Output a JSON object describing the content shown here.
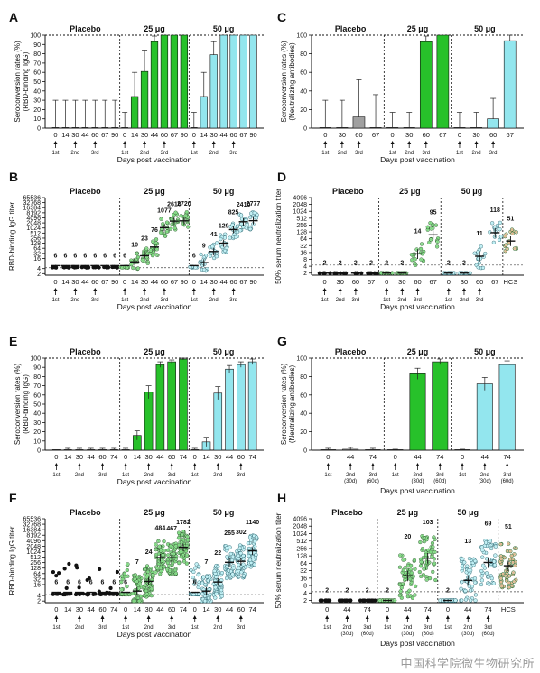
{
  "colors": {
    "placebo": "#a0a0a0",
    "dose25": "#27c12a",
    "dose50": "#93e6ee",
    "hcs": "#c98a48",
    "edge": "#111111"
  },
  "watermark": "中国科学院微生物研究所",
  "chart_data": [
    {
      "id": "A",
      "type": "bar",
      "title": "",
      "ylabel": "Seroconversion rates (%)\n(RBD-binding IgG)",
      "xlabel": "Days post vaccination",
      "ylim": [
        0,
        100
      ],
      "yticks": [
        0,
        10,
        20,
        30,
        40,
        50,
        60,
        70,
        80,
        90,
        100
      ],
      "groups": [
        {
          "name": "Placebo",
          "x": [
            "0",
            "14",
            "30",
            "44",
            "60",
            "67",
            "90"
          ],
          "values": [
            0,
            0,
            0,
            0,
            0,
            0,
            0
          ],
          "err_hi": [
            30,
            30,
            30,
            30,
            30,
            30,
            30
          ]
        },
        {
          "name": "25 μg",
          "x": [
            "0",
            "14",
            "30",
            "44",
            "60",
            "67",
            "90"
          ],
          "values": [
            0,
            34,
            61,
            93,
            100,
            100,
            100
          ],
          "err_hi": [
            17,
            60,
            84,
            99,
            100,
            100,
            100
          ]
        },
        {
          "name": "50 μg",
          "x": [
            "0",
            "14",
            "30",
            "44",
            "60",
            "67",
            "90"
          ],
          "values": [
            0,
            34,
            79,
            100,
            100,
            100,
            100
          ],
          "err_hi": [
            17,
            60,
            93,
            100,
            100,
            100,
            100
          ]
        }
      ],
      "dose_marks": [
        {
          "x": "0",
          "label": "1st"
        },
        {
          "x": "30",
          "label": "2nd"
        },
        {
          "x": "60",
          "label": "3rd"
        }
      ]
    },
    {
      "id": "B",
      "type": "scatter",
      "title": "",
      "ylabel": "RBD-binding IgG titer",
      "xlabel": "Days post vaccination",
      "yticks": [
        "2",
        "4",
        "16",
        "32",
        "64",
        "128",
        "256",
        "512",
        "1024",
        "2048",
        "4096",
        "8192",
        "16384",
        "32768",
        "65536"
      ],
      "groups": [
        {
          "name": "Placebo",
          "x": [
            "0",
            "14",
            "30",
            "44",
            "60",
            "67",
            "90"
          ],
          "gmt": [
            6,
            6,
            6,
            6,
            6,
            6,
            6
          ],
          "gmt_labels": [
            "6",
            "6",
            "6",
            "6",
            "6",
            "6",
            "6"
          ]
        },
        {
          "name": "25 μg",
          "x": [
            "0",
            "14",
            "30",
            "44",
            "60",
            "67",
            "90"
          ],
          "gmt": [
            6,
            10,
            23,
            76,
            1077,
            2616,
            2720
          ],
          "gmt_labels": [
            "6",
            "10",
            "23",
            "76",
            "1077",
            "2616",
            "2720"
          ]
        },
        {
          "name": "50 μg",
          "x": [
            "0",
            "14",
            "30",
            "44",
            "60",
            "67",
            "90"
          ],
          "gmt": [
            6,
            9,
            41,
            129,
            825,
            2410,
            2777
          ],
          "gmt_labels": [
            "6",
            "9",
            "41",
            "129",
            "825",
            "2410",
            "2777"
          ]
        }
      ],
      "dose_marks": [
        {
          "x": "0",
          "label": "1st"
        },
        {
          "x": "30",
          "label": "2nd"
        },
        {
          "x": "60",
          "label": "3rd"
        }
      ]
    },
    {
      "id": "C",
      "type": "bar",
      "title": "",
      "ylabel": "Seroconversion rates (%)\n(Neutralizing antibodies)",
      "xlabel": "Days post vaccination",
      "ylim": [
        0,
        100
      ],
      "yticks": [
        0,
        20,
        40,
        60,
        80,
        100
      ],
      "groups": [
        {
          "name": "Placebo",
          "x": [
            "0",
            "30",
            "60",
            "67"
          ],
          "values": [
            0,
            0,
            12,
            0
          ],
          "err_hi": [
            30,
            30,
            52,
            36
          ]
        },
        {
          "name": "25 μg",
          "x": [
            "0",
            "30",
            "60",
            "67"
          ],
          "values": [
            0,
            0,
            93,
            100
          ],
          "err_hi": [
            17,
            17,
            99,
            100
          ]
        },
        {
          "name": "50 μg",
          "x": [
            "0",
            "30",
            "60",
            "67"
          ],
          "values": [
            0,
            0,
            10,
            94
          ],
          "err_hi": [
            17,
            17,
            32,
            100
          ]
        }
      ],
      "dose_marks": [
        {
          "x": "0",
          "label": "1st"
        },
        {
          "x": "30",
          "label": "2nd"
        },
        {
          "x": "60",
          "label": "3rd"
        }
      ]
    },
    {
      "id": "D",
      "type": "scatter",
      "title": "",
      "ylabel": "50% serum neutralization titer",
      "xlabel": "Days post vaccination",
      "yticks": [
        "2",
        "4",
        "8",
        "16",
        "32",
        "64",
        "128",
        "256",
        "512",
        "1024",
        "2048",
        "4096"
      ],
      "groups": [
        {
          "name": "Placebo",
          "x": [
            "0",
            "30",
            "60",
            "67"
          ],
          "gmt": [
            2,
            2,
            2,
            2
          ],
          "gmt_labels": [
            "2",
            "2",
            "2",
            "2"
          ]
        },
        {
          "name": "25 μg",
          "x": [
            "0",
            "30",
            "60",
            "67"
          ],
          "gmt": [
            2,
            2,
            14,
            95
          ],
          "gmt_labels": [
            "2",
            "2",
            "14",
            "95"
          ]
        },
        {
          "name": "50 μg",
          "x": [
            "0",
            "30",
            "60",
            "67"
          ],
          "gmt": [
            2,
            2,
            11,
            118
          ],
          "gmt_labels": [
            "2",
            "2",
            "11",
            "118"
          ]
        },
        {
          "name": "",
          "x": [
            "HCS"
          ],
          "gmt": [
            51
          ],
          "gmt_labels": [
            "51"
          ]
        }
      ],
      "dose_marks": [
        {
          "x": "0",
          "label": "1st"
        },
        {
          "x": "30",
          "label": "2nd"
        },
        {
          "x": "60",
          "label": "3rd"
        }
      ]
    },
    {
      "id": "E",
      "type": "bar",
      "title": "",
      "ylabel": "Seroconversion rates (%)\n(RBD-binding IgG)",
      "xlabel": "Days post vaccination",
      "ylim": [
        0,
        100
      ],
      "yticks": [
        0,
        10,
        20,
        30,
        40,
        50,
        60,
        70,
        80,
        90,
        100
      ],
      "groups": [
        {
          "name": "Placebo",
          "x": [
            "0",
            "14",
            "30",
            "44",
            "60",
            "74"
          ],
          "values": [
            0,
            0,
            0,
            0,
            0,
            0
          ],
          "err": [
            0,
            2,
            2,
            2,
            2,
            2
          ]
        },
        {
          "name": "25 μg",
          "x": [
            "0",
            "14",
            "30",
            "44",
            "60",
            "74"
          ],
          "values": [
            0,
            16,
            63,
            93,
            96,
            99
          ],
          "err": [
            2,
            5,
            7,
            3,
            2,
            1
          ]
        },
        {
          "name": "50 μg",
          "x": [
            "0",
            "14",
            "30",
            "44",
            "60",
            "74"
          ],
          "values": [
            0,
            9,
            62,
            88,
            93,
            96
          ],
          "err": [
            2,
            5,
            7,
            4,
            3,
            3
          ]
        }
      ],
      "dose_marks": [
        {
          "x": "0",
          "label": "1st"
        },
        {
          "x": "30",
          "label": "2nd"
        },
        {
          "x": "60",
          "label": "3rd"
        }
      ]
    },
    {
      "id": "F",
      "type": "scatter",
      "title": "",
      "ylabel": "RBD-binding IgG titer",
      "xlabel": "Days post vaccination",
      "yticks": [
        "2",
        "4",
        "16",
        "32",
        "64",
        "128",
        "256",
        "512",
        "1024",
        "2048",
        "4096",
        "8192",
        "16384",
        "32768",
        "65536"
      ],
      "groups": [
        {
          "name": "Placebo",
          "x": [
            "0",
            "14",
            "30",
            "44",
            "60",
            "74"
          ],
          "gmt": [
            6,
            6,
            6,
            6,
            6,
            6
          ],
          "gmt_labels": [
            "6",
            "6",
            "6",
            "6",
            "6",
            "6"
          ]
        },
        {
          "name": "25 μg",
          "x": [
            "0",
            "14",
            "30",
            "44",
            "60",
            "74"
          ],
          "gmt": [
            6,
            7,
            24,
            484,
            467,
            1782
          ],
          "gmt_labels": [
            "6",
            "7",
            "24",
            "484",
            "467",
            "1782"
          ]
        },
        {
          "name": "50 μg",
          "x": [
            "0",
            "14",
            "30",
            "44",
            "60",
            "74"
          ],
          "gmt": [
            6,
            7,
            22,
            265,
            302,
            1140
          ],
          "gmt_labels": [
            "6",
            "7",
            "22",
            "265",
            "302",
            "1140"
          ]
        }
      ],
      "dose_marks": [
        {
          "x": "0",
          "label": "1st"
        },
        {
          "x": "30",
          "label": "2nd"
        },
        {
          "x": "60",
          "label": "3rd"
        }
      ]
    },
    {
      "id": "G",
      "type": "bar",
      "title": "",
      "ylabel": "Seroconversion rates (%)\n(Neutralizing antibodies)",
      "xlabel": "Days post vaccination",
      "ylim": [
        0,
        100
      ],
      "yticks": [
        0,
        20,
        40,
        60,
        80,
        100
      ],
      "groups": [
        {
          "name": "Placebo",
          "x": [
            "0",
            "44",
            "74"
          ],
          "values": [
            0,
            1,
            0
          ],
          "err": [
            2,
            2,
            2
          ]
        },
        {
          "name": "25 μg",
          "x": [
            "0",
            "44",
            "74"
          ],
          "values": [
            0,
            83,
            96
          ],
          "err": [
            1,
            6,
            3
          ]
        },
        {
          "name": "50 μg",
          "x": [
            "0",
            "44",
            "74"
          ],
          "values": [
            0,
            72,
            93
          ],
          "err": [
            1,
            7,
            4
          ]
        }
      ],
      "dose_marks": [
        {
          "x": "0",
          "label": "1st"
        },
        {
          "x": "44",
          "label": "2nd\n(30d)"
        },
        {
          "x": "74",
          "label": "3rd\n(60d)"
        }
      ]
    },
    {
      "id": "H",
      "type": "scatter",
      "title": "",
      "ylabel": "50% serum neutralization titer",
      "xlabel": "Days post vaccination",
      "yticks": [
        "2",
        "4",
        "8",
        "16",
        "32",
        "64",
        "128",
        "256",
        "512",
        "1024",
        "2048",
        "4096"
      ],
      "groups": [
        {
          "name": "Placebo",
          "x": [
            "0",
            "44",
            "74"
          ],
          "gmt": [
            2,
            2,
            2
          ],
          "gmt_labels": [
            "2",
            "2",
            "2"
          ]
        },
        {
          "name": "25 μg",
          "x": [
            "0",
            "44",
            "74"
          ],
          "gmt": [
            2,
            20,
            103
          ],
          "gmt_labels": [
            "2",
            "20",
            "103"
          ]
        },
        {
          "name": "50 μg",
          "x": [
            "0",
            "44",
            "74"
          ],
          "gmt": [
            2,
            13,
            69
          ],
          "gmt_labels": [
            "2",
            "13",
            "69"
          ]
        },
        {
          "name": "",
          "x": [
            "HCS"
          ],
          "gmt": [
            51
          ],
          "gmt_labels": [
            "51"
          ]
        }
      ],
      "dose_marks": [
        {
          "x": "0",
          "label": "1st"
        },
        {
          "x": "44",
          "label": "2nd\n(30d)"
        },
        {
          "x": "74",
          "label": "3rd\n(60d)"
        }
      ]
    }
  ]
}
